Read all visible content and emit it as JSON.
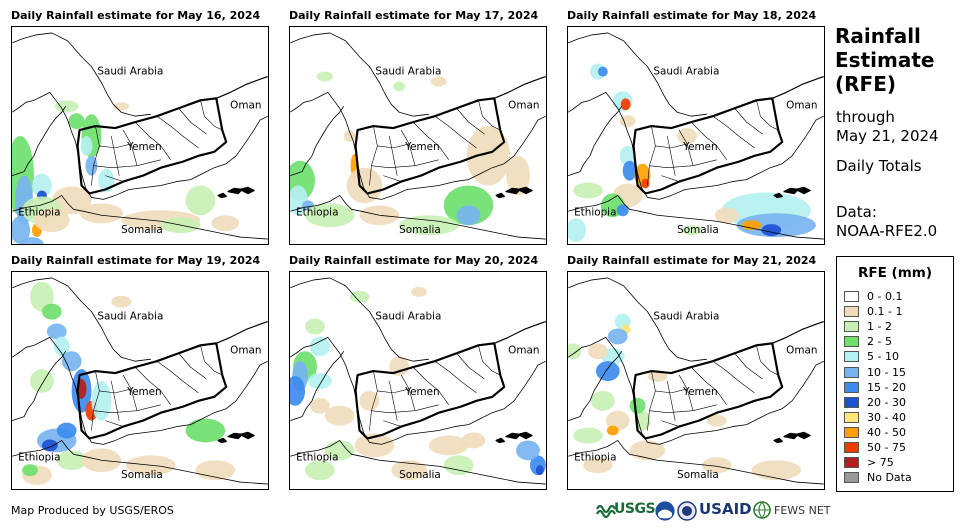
{
  "panels": [
    {
      "title": "Daily Rainfall estimate for May 16, 2024"
    },
    {
      "title": "Daily Rainfall estimate for May 17, 2024"
    },
    {
      "title": "Daily Rainfall estimate for May 18, 2024"
    },
    {
      "title": "Daily Rainfall estimate for May 19, 2024"
    },
    {
      "title": "Daily Rainfall estimate for May 20, 2024"
    },
    {
      "title": "Daily Rainfall estimate for May 21, 2024"
    }
  ],
  "countries": {
    "saudi_arabia": "Saudi Arabia",
    "oman": "Oman",
    "yemen": "Yemen",
    "ethiopia": "Ethiopia",
    "somalia": "Somalia"
  },
  "side": {
    "title_line1": "Rainfall",
    "title_line2": "Estimate",
    "title_line3": "(RFE)",
    "through": "through",
    "date": "May 21, 2024",
    "totals": "Daily Totals",
    "data_label": "Data:",
    "data_source": "NOAA-RFE2.0"
  },
  "legend": {
    "title": "RFE (mm)",
    "items": [
      {
        "label": "0 - 0.1",
        "color": "#ffffff"
      },
      {
        "label": "0.1 - 1",
        "color": "#f0dcbc"
      },
      {
        "label": "1 - 2",
        "color": "#c8f0b4"
      },
      {
        "label": "2 - 5",
        "color": "#6ee06e"
      },
      {
        "label": "5 - 10",
        "color": "#b4f0f0"
      },
      {
        "label": "10 - 15",
        "color": "#78b4f0"
      },
      {
        "label": "15 - 20",
        "color": "#3c8cf0"
      },
      {
        "label": "20 - 30",
        "color": "#1e50d2"
      },
      {
        "label": "30 - 40",
        "color": "#ffe678"
      },
      {
        "label": "40 - 50",
        "color": "#ffa000"
      },
      {
        "label": "50 - 75",
        "color": "#f03c00"
      },
      {
        "label": "> 75",
        "color": "#b41e1e"
      },
      {
        "label": "No Data",
        "color": "#999999"
      }
    ]
  },
  "footer": {
    "credit": "Map Produced by USGS/EROS",
    "usgs": "USGS",
    "usaid": "USAID",
    "fews": "FEWS NET"
  }
}
